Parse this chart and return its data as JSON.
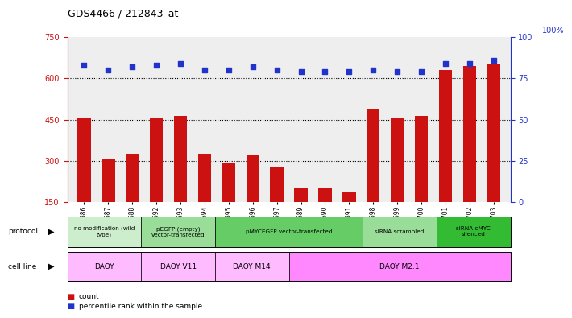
{
  "title": "GDS4466 / 212843_at",
  "samples": [
    "GSM550686",
    "GSM550687",
    "GSM550688",
    "GSM550692",
    "GSM550693",
    "GSM550694",
    "GSM550695",
    "GSM550696",
    "GSM550697",
    "GSM550689",
    "GSM550690",
    "GSM550691",
    "GSM550698",
    "GSM550699",
    "GSM550700",
    "GSM550701",
    "GSM550702",
    "GSM550703"
  ],
  "counts": [
    455,
    305,
    325,
    455,
    465,
    325,
    290,
    320,
    280,
    205,
    200,
    185,
    490,
    455,
    465,
    630,
    645,
    650
  ],
  "percentile_ranks": [
    83,
    80,
    82,
    83,
    84,
    80,
    80,
    82,
    80,
    79,
    79,
    79,
    80,
    79,
    79,
    84,
    84,
    86
  ],
  "ylim_left": [
    150,
    750
  ],
  "ylim_right": [
    0,
    100
  ],
  "yticks_left": [
    150,
    300,
    450,
    600,
    750
  ],
  "yticks_right": [
    0,
    25,
    50,
    75,
    100
  ],
  "bar_color": "#cc1111",
  "dot_color": "#2233cc",
  "background_color": "#ffffff",
  "plot_bg_color": "#eeeeee",
  "protocol_groups": [
    {
      "label": "no modification (wild\ntype)",
      "start": 0,
      "end": 3,
      "color": "#cceecc"
    },
    {
      "label": "pEGFP (empty)\nvector-transfected",
      "start": 3,
      "end": 6,
      "color": "#99dd99"
    },
    {
      "label": "pMYCEGFP vector-transfected",
      "start": 6,
      "end": 12,
      "color": "#66cc66"
    },
    {
      "label": "siRNA scrambled",
      "start": 12,
      "end": 15,
      "color": "#99dd99"
    },
    {
      "label": "siRNA cMYC\nsilenced",
      "start": 15,
      "end": 18,
      "color": "#33bb33"
    }
  ],
  "cell_line_groups": [
    {
      "label": "DAOY",
      "start": 0,
      "end": 3,
      "color": "#ffbbff"
    },
    {
      "label": "DAOY V11",
      "start": 3,
      "end": 6,
      "color": "#ffbbff"
    },
    {
      "label": "DAOY M14",
      "start": 6,
      "end": 9,
      "color": "#ffbbff"
    },
    {
      "label": "DAOY M2.1",
      "start": 9,
      "end": 18,
      "color": "#ff88ff"
    }
  ],
  "left_axis_color": "#cc1111",
  "right_axis_color": "#2233cc",
  "gridline_values": [
    300,
    450,
    600
  ],
  "right_axis_top_label": "100%"
}
